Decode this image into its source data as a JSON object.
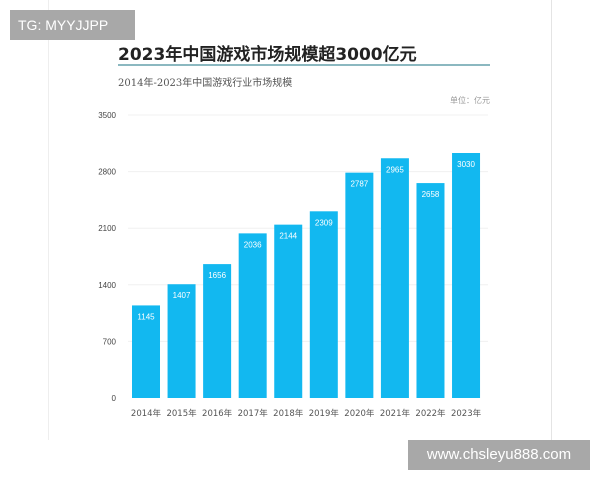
{
  "watermark_top": "TG: MYYJJPP",
  "watermark_bottom": "www.chsleyu888.com",
  "colors": {
    "bar": "#12b8f0",
    "bar_label": "#ffffff",
    "title_rule": "#8bb8c0"
  },
  "chart_data": {
    "type": "bar",
    "title": "2023年中国游戏市场规模超3000亿元",
    "subtitle": "2014年-2023年中国游戏行业市场规模",
    "unit": "单位：亿元",
    "categories": [
      "2014年",
      "2015年",
      "2016年",
      "2017年",
      "2018年",
      "2019年",
      "2020年",
      "2021年",
      "2022年",
      "2023年"
    ],
    "values": [
      1145,
      1407,
      1656,
      2036,
      2144,
      2309,
      2787,
      2965,
      2658,
      3030
    ],
    "ylim": [
      0,
      3500
    ],
    "yticks": [
      0,
      700,
      1400,
      2100,
      2800,
      3500
    ],
    "grid": true,
    "legend": "none"
  }
}
